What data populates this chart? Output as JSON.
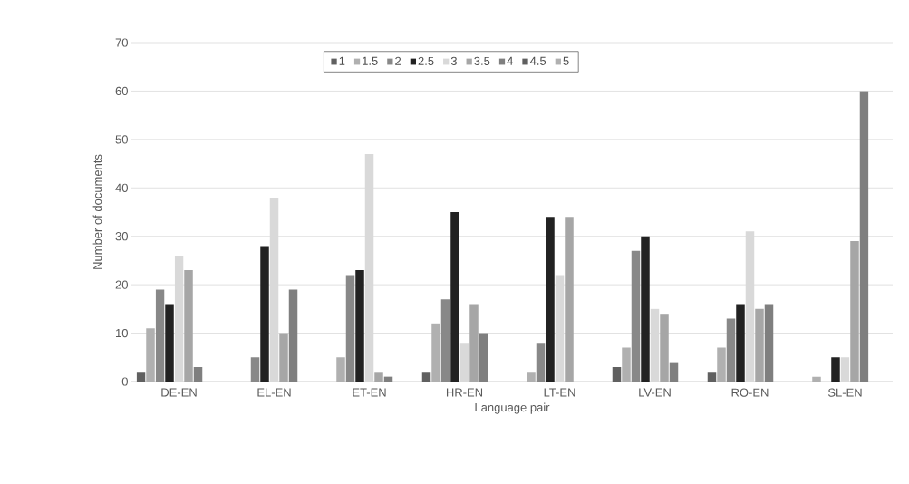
{
  "chart_data": {
    "type": "bar",
    "xlabel": "Language pair",
    "ylabel": "Number of documents",
    "categories": [
      "DE-EN",
      "EL-EN",
      "ET-EN",
      "HR-EN",
      "LT-EN",
      "LV-EN",
      "RO-EN",
      "SL-EN"
    ],
    "series": [
      {
        "name": "1",
        "color": "#606060",
        "values": [
          2,
          0,
          0,
          2,
          0,
          3,
          2,
          0
        ]
      },
      {
        "name": "1.5",
        "color": "#b0b0b0",
        "values": [
          11,
          0,
          5,
          12,
          2,
          7,
          7,
          1
        ]
      },
      {
        "name": "2",
        "color": "#888888",
        "values": [
          19,
          5,
          22,
          17,
          8,
          27,
          13,
          0
        ]
      },
      {
        "name": "2.5",
        "color": "#222222",
        "values": [
          16,
          28,
          23,
          35,
          34,
          30,
          16,
          5
        ]
      },
      {
        "name": "3",
        "color": "#d9d9d9",
        "values": [
          26,
          38,
          47,
          8,
          22,
          15,
          31,
          5
        ]
      },
      {
        "name": "3.5",
        "color": "#a6a6a6",
        "values": [
          23,
          10,
          2,
          16,
          34,
          14,
          15,
          29
        ]
      },
      {
        "name": "4",
        "color": "#7f7f7f",
        "values": [
          3,
          19,
          1,
          10,
          0,
          4,
          16,
          60
        ]
      },
      {
        "name": "4.5",
        "color": "#5f5f5f",
        "values": [
          0,
          0,
          0,
          0,
          0,
          0,
          0,
          0
        ]
      },
      {
        "name": "5",
        "color": "#b0b0b0",
        "values": [
          0,
          0,
          0,
          0,
          0,
          0,
          0,
          0
        ]
      }
    ],
    "ylim": [
      0,
      70
    ],
    "yticks": [
      0,
      10,
      20,
      30,
      40,
      50,
      60,
      70
    ],
    "grid": "y",
    "legend": "top"
  }
}
